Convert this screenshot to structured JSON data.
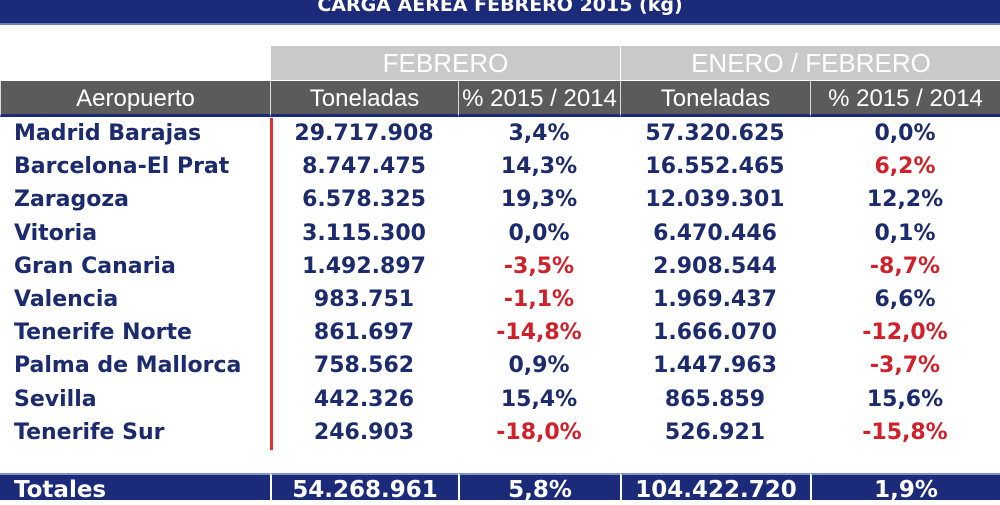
{
  "title": "CARGA AEREA FEBRERO 2015 (kg)",
  "groups": {
    "feb": "FEBRERO",
    "ene_feb": "ENERO / FEBRERO"
  },
  "headers": [
    "Aeropuerto",
    "Toneladas",
    "% 2015 / 2014",
    "Toneladas",
    "% 2015 / 2014"
  ],
  "rows": [
    [
      "Madrid Barajas",
      "29.717.908",
      "3,4%",
      "57.320.625",
      "0,0%"
    ],
    [
      "Barcelona-El Prat",
      "8.747.475",
      "14,3%",
      "16.552.465",
      "6,2%"
    ],
    [
      "Zaragoza",
      "6.578.325",
      "19,3%",
      "12.039.301",
      "12,2%"
    ],
    [
      "Vitoria",
      "3.115.300",
      "0,0%",
      "6.470.446",
      "0,1%"
    ],
    [
      "Gran Canaria",
      "1.492.897",
      "-3,5%",
      "2.908.544",
      "-8,7%"
    ],
    [
      "Valencia",
      "983.751",
      "-1,1%",
      "1.969.437",
      "6,6%"
    ],
    [
      "Tenerife Norte",
      "861.697",
      "-14,8%",
      "1.666.070",
      "-12,0%"
    ],
    [
      "Palma de Mallorca",
      "758.562",
      "0,9%",
      "1.447.963",
      "-3,7%"
    ],
    [
      "Sevilla",
      "442.326",
      "15,4%",
      "865.859",
      "15,6%"
    ],
    [
      "Tenerife Sur",
      "246.903",
      "-18,0%",
      "526.921",
      "-15,8%"
    ]
  ],
  "red_cells": [
    [
      1,
      4
    ],
    [
      4,
      2
    ],
    [
      4,
      4
    ],
    [
      5,
      2
    ],
    [
      6,
      2
    ],
    [
      6,
      4
    ],
    [
      7,
      4
    ],
    [
      9,
      2
    ],
    [
      9,
      4
    ]
  ],
  "totals": [
    "Totales",
    "54.268.961",
    "5,8%",
    "104.422.720",
    "1,9%"
  ]
}
